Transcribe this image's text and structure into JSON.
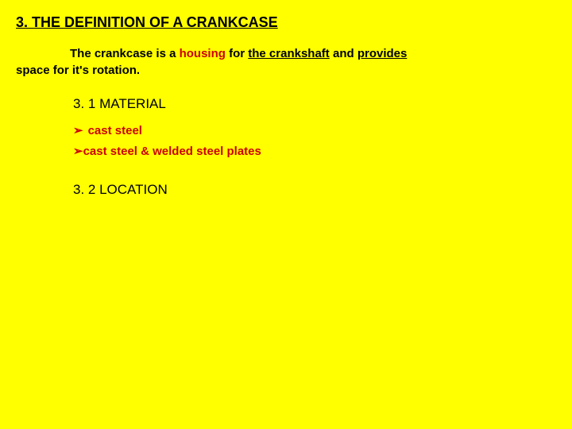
{
  "title": "3. THE DEFINITION OF A CRANKCASE",
  "definition": {
    "prefix": "The crankcase is a ",
    "housing": "housing",
    "mid": " for ",
    "crankshaft": "the crankshaft",
    "mid2": " and ",
    "provides": "provides",
    "line2": "space for it's rotation."
  },
  "sub1": "3. 1 MATERIAL",
  "bullets": [
    "cast steel",
    "cast steel & welded steel plates"
  ],
  "sub2": "3. 2 LOCATION",
  "colors": {
    "background": "#ffff00",
    "text": "#000000",
    "accent": "#cc0000"
  }
}
